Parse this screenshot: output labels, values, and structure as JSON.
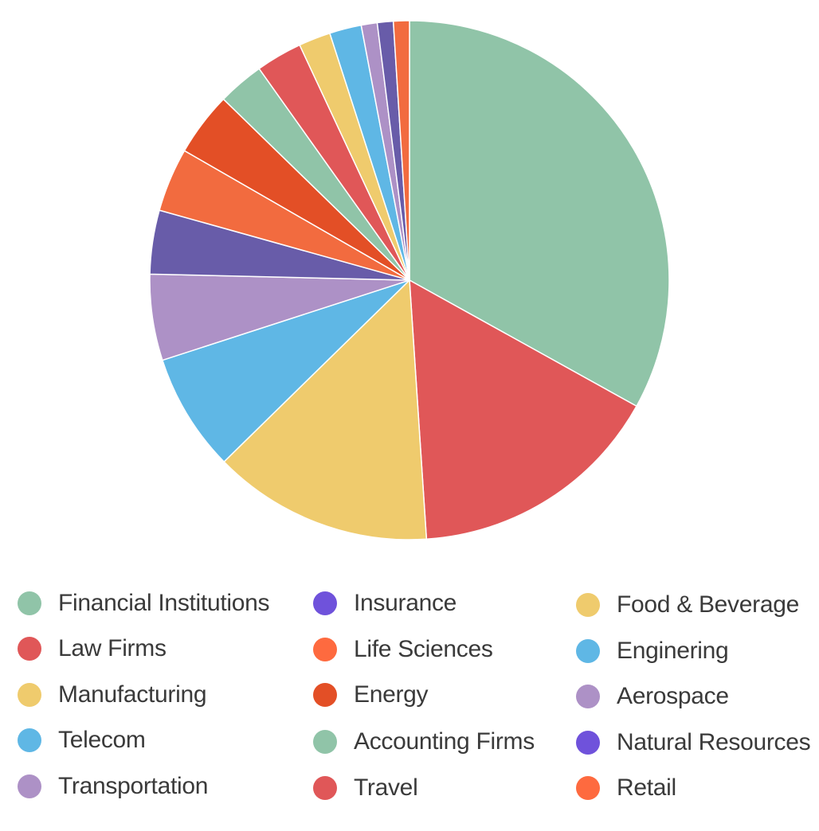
{
  "chart_data": {
    "type": "pie",
    "title": "",
    "start_angle_deg": 0,
    "direction": "clockwise",
    "slice_stroke": "#ffffff",
    "legend_position": "bottom",
    "legend_columns": 3,
    "slices": [
      {
        "label": "Financial Institutions",
        "value": 33.3,
        "color": "#90c4a8"
      },
      {
        "label": "Law Firms",
        "value": 16.0,
        "color": "#e05758"
      },
      {
        "label": "Manufacturing",
        "value": 13.8,
        "color": "#efcb6d"
      },
      {
        "label": "Telecom",
        "value": 7.4,
        "color": "#5fb7e5"
      },
      {
        "label": "Transportation",
        "value": 5.4,
        "color": "#ad91c6"
      },
      {
        "label": "Insurance",
        "value": 4.0,
        "color": "#685ca9"
      },
      {
        "label": "Life Sciences",
        "value": 4.0,
        "color": "#f26b3f"
      },
      {
        "label": "Energy",
        "value": 4.0,
        "color": "#e34f26"
      },
      {
        "label": "Accounting Firms",
        "value": 2.9,
        "color": "#90c4a8"
      },
      {
        "label": "Travel",
        "value": 2.9,
        "color": "#e05758"
      },
      {
        "label": "Food & Beverage",
        "value": 2.0,
        "color": "#efcb6d"
      },
      {
        "label": "Enginering",
        "value": 2.0,
        "color": "#5fb7e5"
      },
      {
        "label": "Aerospace",
        "value": 1.0,
        "color": "#ad91c6"
      },
      {
        "label": "Natural Resources",
        "value": 1.0,
        "color": "#685ca9"
      },
      {
        "label": "Retail",
        "value": 1.0,
        "color": "#f26b3f"
      }
    ]
  },
  "legend": {
    "items": [
      {
        "label": "Financial Institutions",
        "color": "#90c4a8"
      },
      {
        "label": "Law Firms",
        "color": "#e05758"
      },
      {
        "label": "Manufacturing",
        "color": "#efcb6d"
      },
      {
        "label": "Telecom",
        "color": "#5fb7e5"
      },
      {
        "label": "Transportation",
        "color": "#ad91c6"
      },
      {
        "label": "Insurance",
        "color": "#6f52db"
      },
      {
        "label": "Life Sciences",
        "color": "#fe6a3f"
      },
      {
        "label": "Energy",
        "color": "#e34f26"
      },
      {
        "label": "Accounting Firms",
        "color": "#90c4a8"
      },
      {
        "label": "Travel",
        "color": "#e05758"
      },
      {
        "label": "Food & Beverage",
        "color": "#efcb6d"
      },
      {
        "label": "Enginering",
        "color": "#5fb7e5"
      },
      {
        "label": "Aerospace",
        "color": "#ad91c6"
      },
      {
        "label": "Natural Resources",
        "color": "#6f52db"
      },
      {
        "label": "Retail",
        "color": "#fe6a3f"
      }
    ]
  }
}
